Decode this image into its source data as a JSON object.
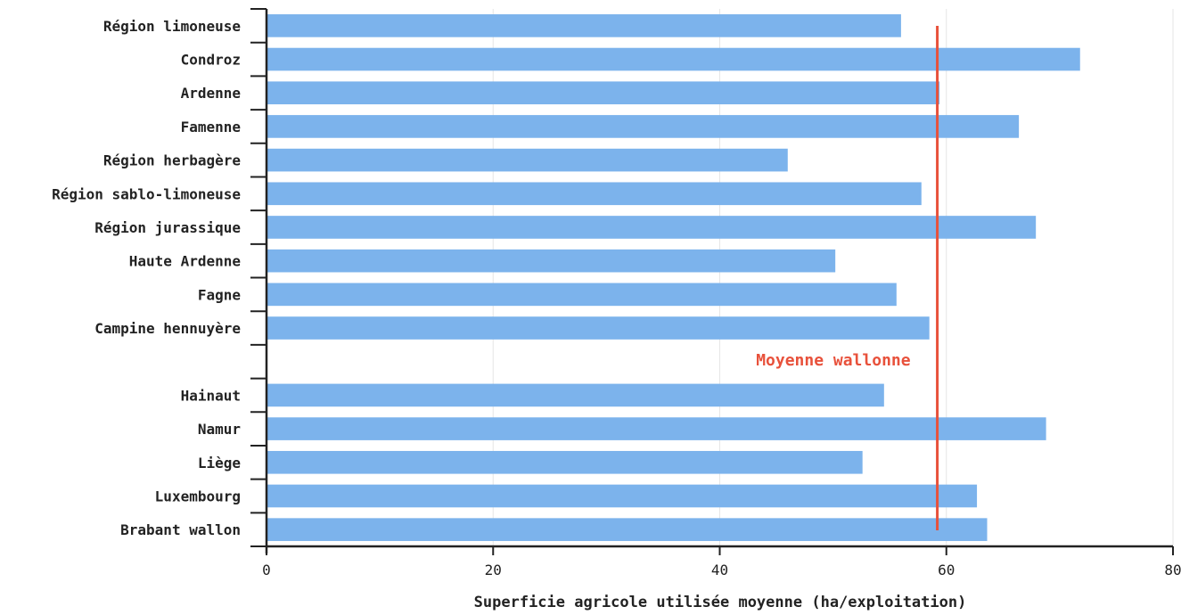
{
  "chart_data": {
    "type": "bar",
    "orientation": "horizontal",
    "categories": [
      "Région limoneuse",
      "Condroz",
      "Ardenne",
      "Famenne",
      "Région herbagère",
      "Région sablo-limoneuse",
      "Région jurassique",
      "Haute Ardenne",
      "Fagne",
      "Campine hennuyère",
      "",
      "Hainaut",
      "Namur",
      "Liège",
      "Luxembourg",
      "Brabant wallon"
    ],
    "values": [
      56.0,
      71.8,
      59.4,
      66.4,
      46.0,
      57.8,
      67.9,
      50.2,
      55.6,
      58.5,
      null,
      54.5,
      68.8,
      52.6,
      62.7,
      63.6
    ],
    "xlabel": "Superficie agricole utilisée moyenne (ha/exploitation)",
    "xlim": [
      0,
      80
    ],
    "xticks": [
      0,
      20,
      40,
      60,
      80
    ],
    "grid": "vertical",
    "bar_color": "#7cb3ec",
    "reference_line": {
      "label": "Moyenne wallonne",
      "value": 59.2,
      "color": "#e8513b"
    }
  }
}
